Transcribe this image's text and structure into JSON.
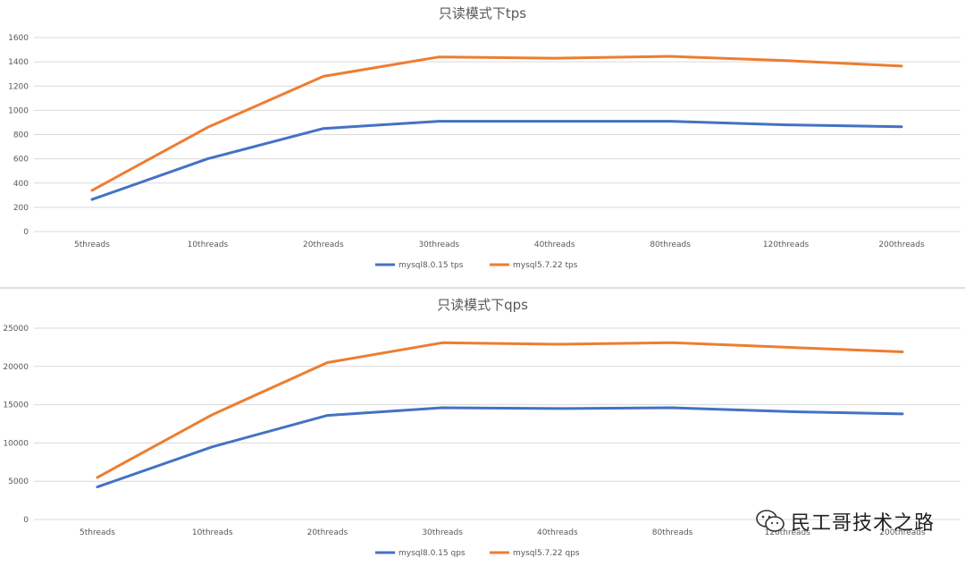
{
  "chart_data": [
    {
      "type": "line",
      "title": "只读模式下tps",
      "categories": [
        "5threads",
        "10threads",
        "20threads",
        "30threads",
        "40threads",
        "80threads",
        "120threads",
        "200threads"
      ],
      "ylim": [
        0,
        1600
      ],
      "yticks": [
        0,
        200,
        400,
        600,
        800,
        1000,
        1200,
        1400,
        1600
      ],
      "grid": true,
      "legend": "bottom",
      "series": [
        {
          "name": "mysql8.0.15 tps",
          "color": "#4472c4",
          "values": [
            265,
            600,
            850,
            910,
            910,
            910,
            880,
            865
          ]
        },
        {
          "name": "mysql5.7.22 tps",
          "color": "#ed7d31",
          "values": [
            340,
            860,
            1280,
            1440,
            1430,
            1445,
            1410,
            1365
          ]
        }
      ]
    },
    {
      "type": "line",
      "title": "只读模式下qps",
      "categories": [
        "5threads",
        "10threads",
        "20threads",
        "30threads",
        "40threads",
        "80threads",
        "120threads",
        "200threads"
      ],
      "ylim": [
        0,
        25000
      ],
      "yticks": [
        0,
        5000,
        10000,
        15000,
        20000,
        25000
      ],
      "grid": true,
      "legend": "bottom",
      "series": [
        {
          "name": "mysql8.0.15 qps",
          "color": "#4472c4",
          "values": [
            4250,
            9500,
            13600,
            14600,
            14500,
            14600,
            14100,
            13800
          ]
        },
        {
          "name": "mysql5.7.22 qps",
          "color": "#ed7d31",
          "values": [
            5500,
            13700,
            20500,
            23100,
            22900,
            23100,
            22500,
            21900
          ]
        }
      ]
    }
  ],
  "watermark": {
    "text": "民工哥技术之路",
    "icon": "wechat-icon"
  }
}
